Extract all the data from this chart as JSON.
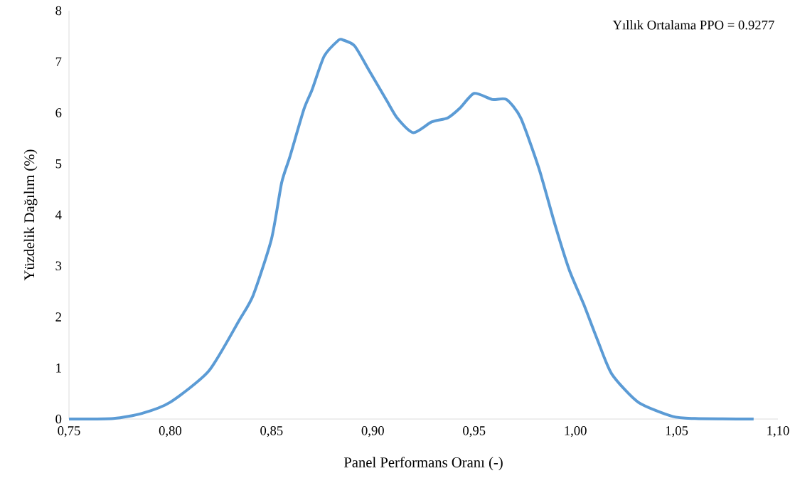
{
  "chart_data": {
    "type": "line",
    "xlabel": "Panel Performans Oranı (-)",
    "ylabel": "Yüzdelik Dağılım (%)",
    "annotations": [
      "Yıllık  Ortalama PPO = 0.9277"
    ],
    "xlim": [
      0.75,
      1.1
    ],
    "ylim": [
      0,
      8
    ],
    "xticks": [
      {
        "value": 0.75,
        "label": "0,75"
      },
      {
        "value": 0.8,
        "label": "0,80"
      },
      {
        "value": 0.85,
        "label": "0,85"
      },
      {
        "value": 0.9,
        "label": "0,90"
      },
      {
        "value": 0.95,
        "label": "0,95"
      },
      {
        "value": 1.0,
        "label": "1,00"
      },
      {
        "value": 1.05,
        "label": "1,05"
      },
      {
        "value": 1.1,
        "label": "1,10"
      }
    ],
    "yticks": [
      0,
      1,
      2,
      3,
      4,
      5,
      6,
      7,
      8
    ],
    "series": [
      {
        "color": "#5b9bd5",
        "x": [
          0.75,
          0.772,
          0.786,
          0.8,
          0.819,
          0.834,
          0.841,
          0.85,
          0.855,
          0.859,
          0.866,
          0.87,
          0.876,
          0.883,
          0.885,
          0.891,
          0.898,
          0.907,
          0.912,
          0.92,
          0.929,
          0.937,
          0.943,
          0.95,
          0.959,
          0.966,
          0.973,
          0.982,
          0.99,
          0.997,
          1.004,
          1.011,
          1.018,
          1.031,
          1.048,
          1.059,
          1.088
        ],
        "values": [
          0,
          0.01,
          0.11,
          0.33,
          0.94,
          1.93,
          2.43,
          3.53,
          4.63,
          5.13,
          6.07,
          6.45,
          7.11,
          7.42,
          7.43,
          7.31,
          6.84,
          6.23,
          5.9,
          5.61,
          5.82,
          5.9,
          6.09,
          6.38,
          6.26,
          6.26,
          5.9,
          4.91,
          3.8,
          2.92,
          2.26,
          1.54,
          0.88,
          0.33,
          0.05,
          0.01,
          0
        ]
      }
    ]
  }
}
